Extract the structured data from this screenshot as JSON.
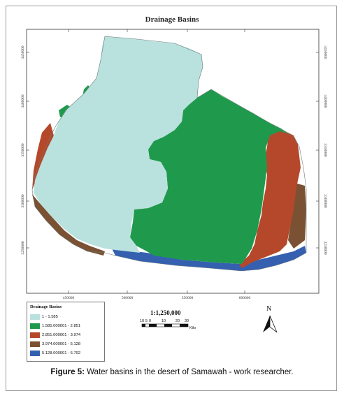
{
  "map": {
    "title": "Drainage Basins",
    "x_ticks": [
      "450000",
      "500000",
      "550000",
      "600000"
    ],
    "y_ticks": [
      "3450000",
      "3400000",
      "3350000",
      "3300000",
      "3250000"
    ]
  },
  "legend": {
    "title": "Drainage Basins",
    "classes": [
      {
        "label": "1 - 1.585",
        "color": "#b9e1de"
      },
      {
        "label": "1.585.000001 - 2.851",
        "color": "#1f9a4c"
      },
      {
        "label": "2.851.000001 - 3.974",
        "color": "#b5482a"
      },
      {
        "label": "3.974.000001 - 5.128",
        "color": "#7a5233"
      },
      {
        "label": "5.128.000001 - 6.792",
        "color": "#3560b0"
      }
    ]
  },
  "scale": {
    "ratio": "1:1,250,000",
    "labels": [
      "10",
      "5",
      "0",
      "10",
      "20",
      "30"
    ],
    "unit": "Kilo"
  },
  "north_arrow": {
    "label": "N"
  },
  "caption": {
    "prefix": "Figure 5:",
    "text": " Water basins in the desert of Samawah - work researcher."
  }
}
